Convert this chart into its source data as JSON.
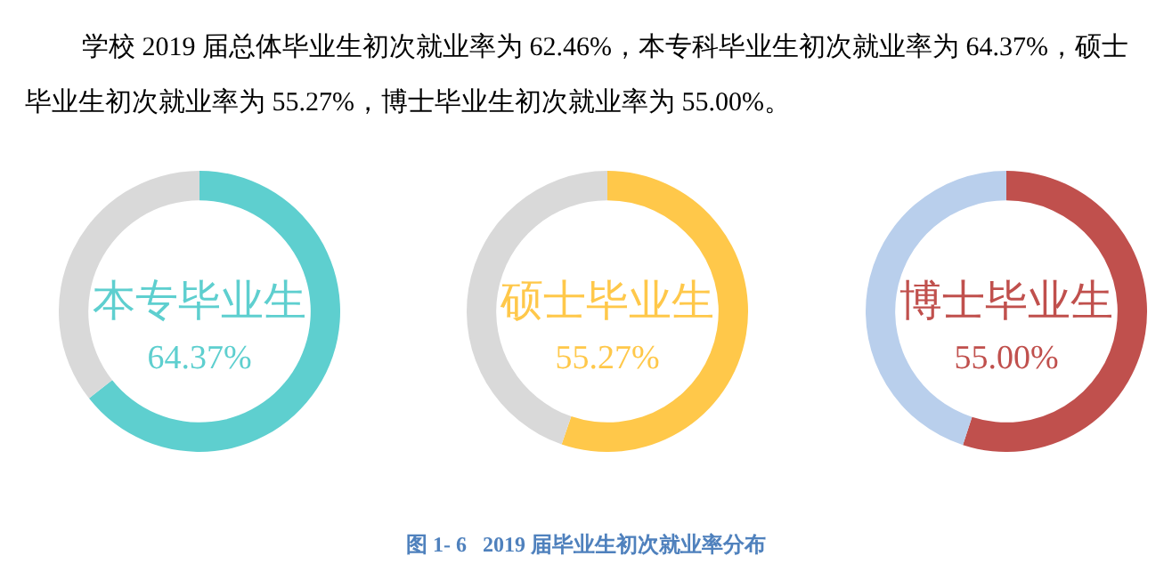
{
  "chart_data": [
    {
      "type": "other",
      "annotations": [
        "学校 2019 届总体毕业生初次就业率为 62.46%，本专科毕业生初次就业率为 64.37%，硕士毕业生初次就业率为 55.27%，博士毕业生初次就业率为 55.00%。"
      ]
    },
    {
      "type": "donut",
      "categories": [
        "本专毕业生",
        null
      ],
      "values": [
        64.37,
        35.63
      ],
      "colors": [
        "#5ecfcf",
        "#d9d9d9"
      ],
      "value_labels": [
        "64.37%",
        null
      ]
    },
    {
      "type": "donut",
      "categories": [
        "硕士毕业生",
        null
      ],
      "values": [
        55.27,
        44.73
      ],
      "colors": [
        "#ffc84a",
        "#d9d9d9"
      ],
      "value_labels": [
        "55.27%",
        null
      ]
    },
    {
      "type": "donut",
      "categories": [
        "博士毕业生",
        null
      ],
      "values": [
        55.0,
        45.0
      ],
      "colors": [
        "#c0504d",
        "#b9cfec"
      ],
      "value_labels": [
        "55.00%",
        null
      ]
    },
    {
      "type": "other",
      "title": "图 1- 6   2019 届毕业生初次就业率分布"
    }
  ]
}
